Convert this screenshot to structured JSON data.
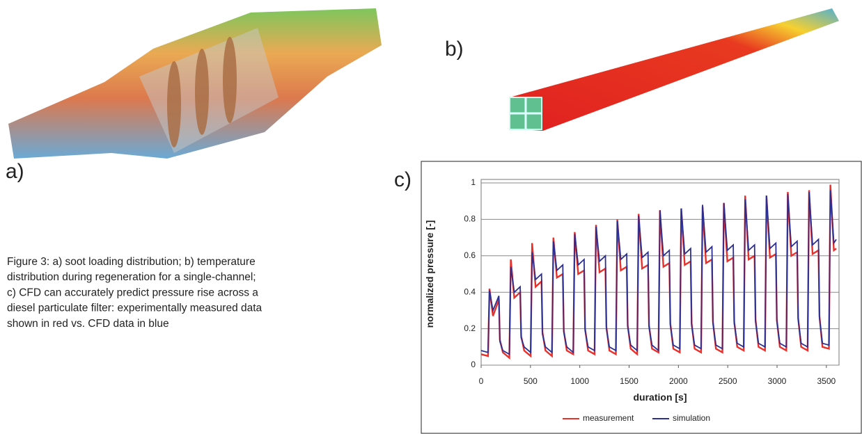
{
  "labels": {
    "a": "a)",
    "b": "b)",
    "c": "c)"
  },
  "caption": [
    "Figure 3: a) soot loading distribution; b) temperature",
    "distribution during regeneration for a single-channel;",
    "c) CFD can accurately predict pressure rise across a",
    "diesel particulate filter: experimentally measured data",
    "shown in red vs. CFD data in blue"
  ],
  "chart_data": {
    "type": "line",
    "xlabel": "duration [s]",
    "ylabel": "normalized pressure [-]",
    "xlim": [
      0,
      3600
    ],
    "xticks": [
      0,
      500,
      1000,
      1500,
      2000,
      2500,
      3000,
      3500
    ],
    "ylim": [
      0,
      1
    ],
    "yticks": [
      0,
      0.2,
      0.4,
      0.6,
      0.8,
      1
    ],
    "grid": true,
    "legend": "bottom",
    "x": [
      0,
      70,
      85,
      120,
      180,
      190,
      220,
      286,
      301,
      336,
      396,
      406,
      436,
      502,
      517,
      552,
      612,
      622,
      652,
      718,
      733,
      768,
      828,
      838,
      868,
      934,
      949,
      984,
      1044,
      1054,
      1084,
      1150,
      1165,
      1200,
      1260,
      1270,
      1300,
      1366,
      1381,
      1416,
      1476,
      1486,
      1516,
      1582,
      1597,
      1632,
      1692,
      1702,
      1732,
      1798,
      1813,
      1848,
      1908,
      1918,
      1948,
      2014,
      2029,
      2064,
      2124,
      2134,
      2164,
      2230,
      2245,
      2280,
      2340,
      2350,
      2380,
      2446,
      2461,
      2496,
      2556,
      2566,
      2596,
      2662,
      2677,
      2712,
      2772,
      2782,
      2812,
      2878,
      2893,
      2928,
      2988,
      2998,
      3028,
      3094,
      3109,
      3144,
      3204,
      3214,
      3244,
      3310,
      3325,
      3360,
      3420,
      3430,
      3460,
      3526,
      3541,
      3576,
      3600
    ],
    "series": [
      {
        "name": "measurement",
        "color": "#e8302c",
        "values": [
          0.06,
          0.05,
          0.42,
          0.27,
          0.36,
          0.14,
          0.07,
          0.04,
          0.58,
          0.37,
          0.4,
          0.16,
          0.08,
          0.05,
          0.67,
          0.43,
          0.46,
          0.18,
          0.08,
          0.05,
          0.7,
          0.48,
          0.5,
          0.19,
          0.08,
          0.06,
          0.73,
          0.5,
          0.52,
          0.2,
          0.08,
          0.06,
          0.77,
          0.51,
          0.53,
          0.21,
          0.08,
          0.06,
          0.8,
          0.52,
          0.54,
          0.22,
          0.09,
          0.06,
          0.83,
          0.53,
          0.55,
          0.22,
          0.09,
          0.07,
          0.85,
          0.54,
          0.56,
          0.23,
          0.09,
          0.07,
          0.86,
          0.55,
          0.57,
          0.23,
          0.09,
          0.07,
          0.87,
          0.56,
          0.58,
          0.24,
          0.09,
          0.07,
          0.89,
          0.57,
          0.59,
          0.24,
          0.1,
          0.08,
          0.93,
          0.58,
          0.6,
          0.25,
          0.1,
          0.08,
          0.93,
          0.59,
          0.61,
          0.25,
          0.1,
          0.08,
          0.95,
          0.6,
          0.62,
          0.26,
          0.1,
          0.08,
          0.96,
          0.61,
          0.63,
          0.27,
          0.1,
          0.09,
          0.99,
          0.63,
          0.64
        ]
      },
      {
        "name": "simulation",
        "color": "#2c2f8f",
        "values": [
          0.08,
          0.07,
          0.41,
          0.3,
          0.38,
          0.13,
          0.08,
          0.06,
          0.54,
          0.4,
          0.43,
          0.15,
          0.1,
          0.07,
          0.62,
          0.47,
          0.5,
          0.17,
          0.1,
          0.07,
          0.68,
          0.52,
          0.55,
          0.18,
          0.1,
          0.07,
          0.72,
          0.55,
          0.58,
          0.19,
          0.1,
          0.08,
          0.76,
          0.57,
          0.6,
          0.2,
          0.1,
          0.08,
          0.79,
          0.58,
          0.61,
          0.21,
          0.11,
          0.08,
          0.82,
          0.59,
          0.62,
          0.21,
          0.11,
          0.08,
          0.85,
          0.6,
          0.63,
          0.22,
          0.11,
          0.09,
          0.86,
          0.61,
          0.64,
          0.22,
          0.11,
          0.09,
          0.88,
          0.62,
          0.65,
          0.23,
          0.11,
          0.09,
          0.89,
          0.63,
          0.66,
          0.23,
          0.12,
          0.1,
          0.91,
          0.63,
          0.66,
          0.24,
          0.12,
          0.1,
          0.93,
          0.64,
          0.67,
          0.24,
          0.12,
          0.1,
          0.94,
          0.65,
          0.68,
          0.25,
          0.12,
          0.1,
          0.95,
          0.66,
          0.69,
          0.26,
          0.12,
          0.11,
          0.96,
          0.67,
          0.69
        ]
      }
    ]
  }
}
